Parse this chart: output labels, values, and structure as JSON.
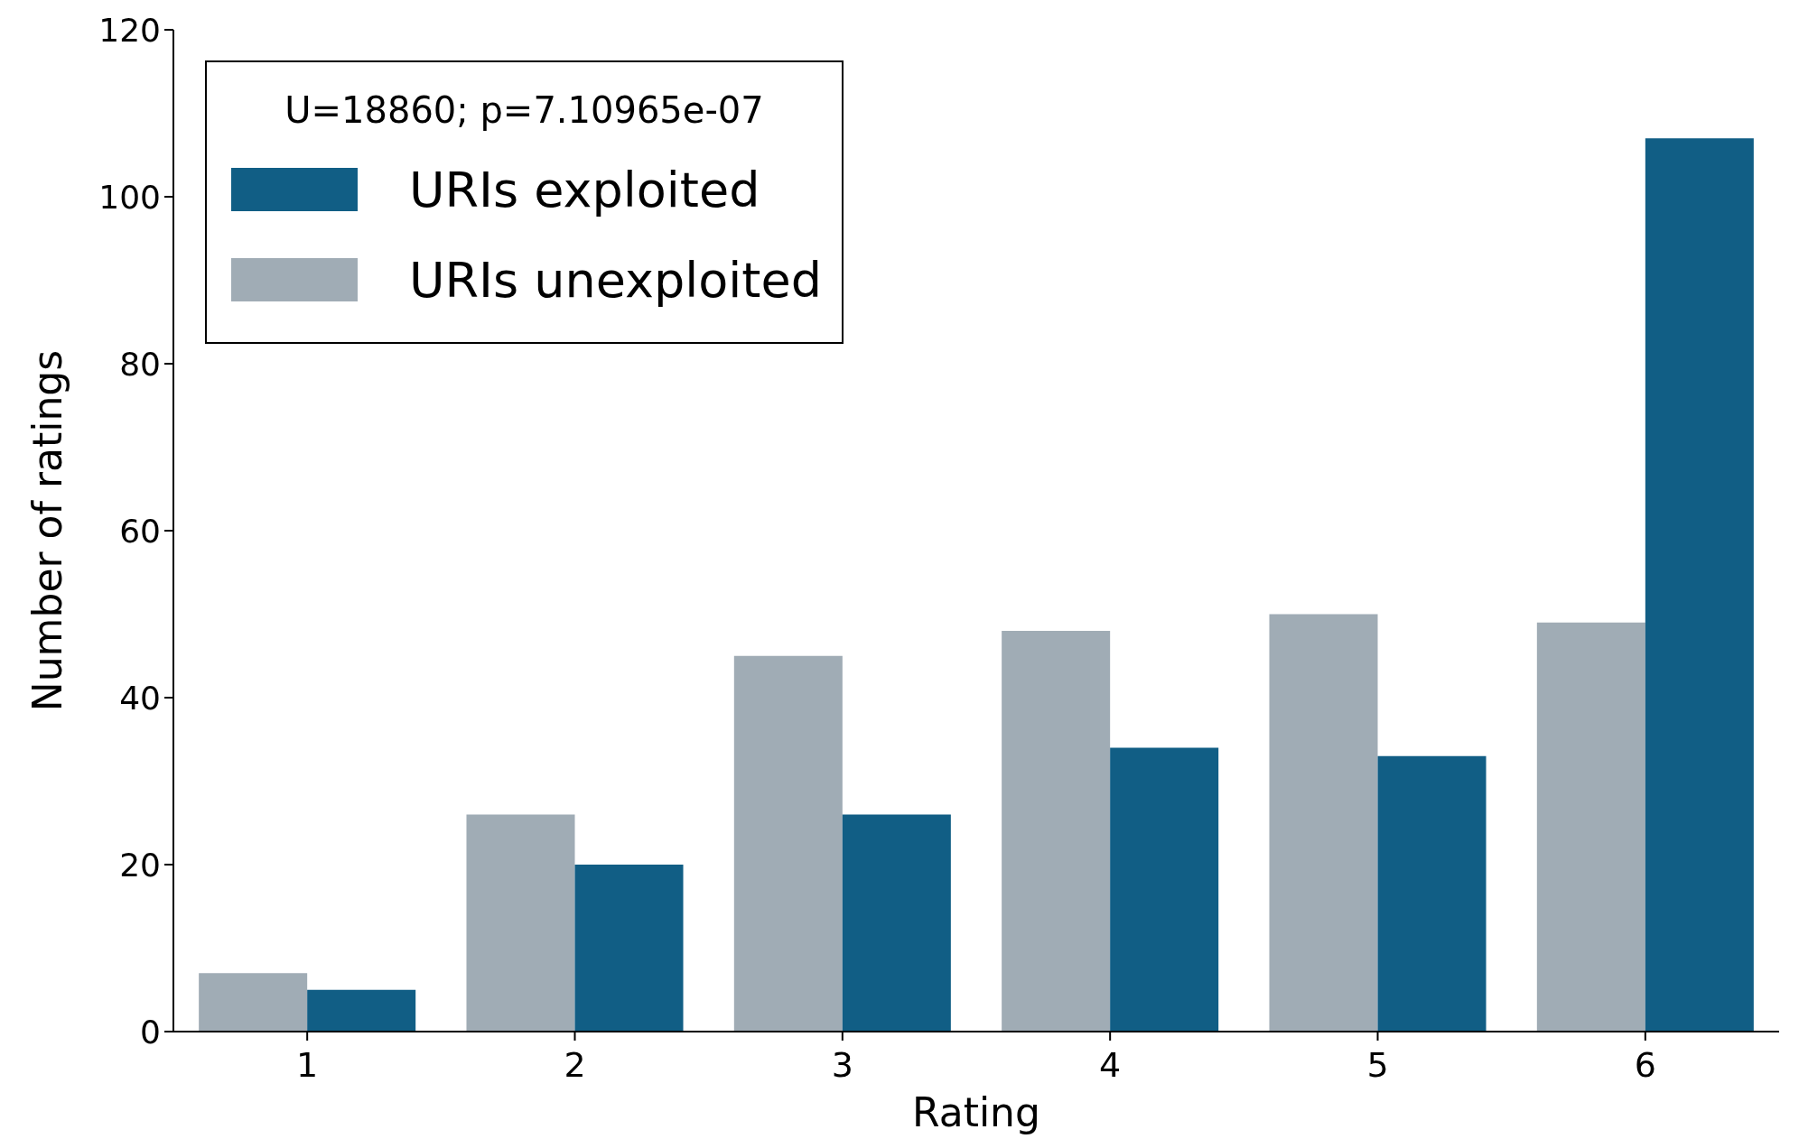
{
  "chart_data": {
    "type": "bar",
    "xlabel": "Rating",
    "ylabel": "Number of ratings",
    "legend_title": "U=18860; p=7.10965e-07",
    "categories": [
      "1",
      "2",
      "3",
      "4",
      "5",
      "6"
    ],
    "series": [
      {
        "name": "URIs unexploited",
        "color": "#a0acb5",
        "values": [
          7,
          26,
          45,
          48,
          50,
          49
        ]
      },
      {
        "name": "URIs exploited",
        "color": "#115e85",
        "values": [
          5,
          20,
          26,
          34,
          33,
          107
        ]
      }
    ],
    "ylim": [
      0,
      120
    ],
    "yticks": [
      0,
      20,
      40,
      60,
      80,
      100,
      120
    ],
    "grid": false,
    "legend": "top left"
  }
}
